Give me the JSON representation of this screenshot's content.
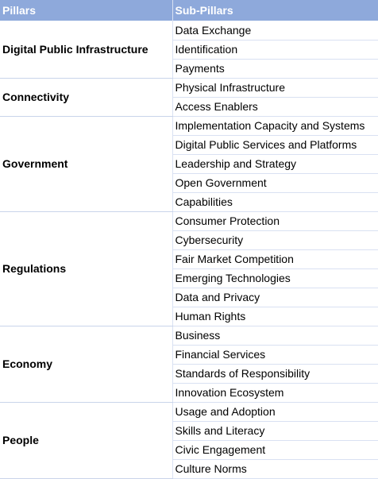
{
  "headers": [
    "Pillars",
    "Sub-Pillars"
  ],
  "pillars": [
    {
      "name": "Digital Public Infrastructure",
      "subs": [
        "Data Exchange",
        "Identification",
        "Payments"
      ]
    },
    {
      "name": "Connectivity",
      "subs": [
        "Physical Infrastructure",
        "Access Enablers"
      ]
    },
    {
      "name": "Government",
      "subs": [
        "Implementation Capacity and Systems",
        "Digital Public Services and Platforms",
        "Leadership and Strategy",
        "Open Government",
        "Capabilities"
      ]
    },
    {
      "name": "Regulations",
      "subs": [
        "Consumer Protection",
        "Cybersecurity",
        "Fair Market Competition",
        "Emerging Technologies",
        "Data and Privacy",
        "Human Rights"
      ]
    },
    {
      "name": "Economy",
      "subs": [
        "Business",
        "Financial Services",
        "Standards of Responsibility",
        "Innovation Ecosystem"
      ]
    },
    {
      "name": "People",
      "subs": [
        "Usage and Adoption",
        "Skills and Literacy",
        "Civic Engagement",
        "Culture Norms"
      ]
    }
  ]
}
